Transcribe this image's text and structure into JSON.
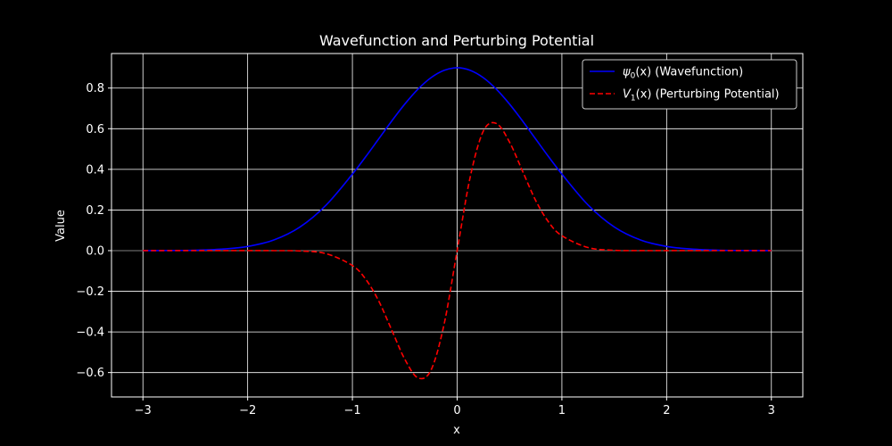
{
  "chart_data": {
    "type": "line",
    "title": "Wavefunction and Perturbing Potential",
    "xlabel": "x",
    "ylabel": "Value",
    "xlim": [
      -3.3,
      3.3
    ],
    "ylim": [
      -0.72,
      0.97
    ],
    "grid": true,
    "legend_placement": "top-right",
    "background": "#000000",
    "foreground": "#ffffff",
    "x_ticks": [
      -3,
      -2,
      -1,
      0,
      1,
      2,
      3
    ],
    "x_tick_labels": [
      "−3",
      "−2",
      "−1",
      "0",
      "1",
      "2",
      "3"
    ],
    "y_ticks": [
      -0.6,
      -0.4,
      -0.2,
      0.0,
      0.2,
      0.4,
      0.6,
      0.8
    ],
    "y_tick_labels": [
      "−0.6",
      "−0.4",
      "−0.2",
      "0.0",
      "0.2",
      "0.4",
      "0.6",
      "0.8"
    ],
    "reference_line": {
      "y": 0,
      "color": "#808080"
    },
    "x": [
      -3.0,
      -2.75,
      -2.5,
      -2.25,
      -2.0,
      -1.75,
      -1.5,
      -1.25,
      -1.0,
      -0.875,
      -0.75,
      -0.625,
      -0.5,
      -0.375,
      -0.25,
      -0.125,
      0.0,
      0.125,
      0.25,
      0.375,
      0.5,
      0.625,
      0.75,
      0.875,
      1.0,
      1.25,
      1.5,
      1.75,
      2.0,
      2.25,
      2.5,
      2.75,
      3.0
    ],
    "series": [
      {
        "name": "ψ₀(x) (Wavefunction)",
        "legend_math": "ψ",
        "legend_sub": "0",
        "legend_rest": "(x) (Wavefunction)",
        "color": "#0000ff",
        "style": "solid",
        "values": [
          0.0001,
          0.0005,
          0.0017,
          0.0057,
          0.0164,
          0.0418,
          0.0926,
          0.1786,
          0.2994,
          0.3663,
          0.4366,
          0.507,
          0.5734,
          0.6314,
          0.6767,
          0.7055,
          0.7155,
          0.7055,
          0.6767,
          0.6314,
          0.5734,
          0.507,
          0.4366,
          0.3663,
          0.2994,
          0.1786,
          0.0926,
          0.0418,
          0.0164,
          0.0057,
          0.0017,
          0.0005,
          0.0001
        ],
        "y_scale": 1.2577
      },
      {
        "name": "V₁(x) (Perturbing Potential)",
        "legend_math": "V",
        "legend_sub": "1",
        "legend_rest": "(x) (Perturbing Potential)",
        "color": "#ff0000",
        "style": "dashed",
        "values": [
          -0.0,
          -0.0,
          -0.0,
          -0.0,
          -0.0,
          -0.0001,
          -0.0017,
          -0.0151,
          -0.0734,
          -0.1393,
          -0.2464,
          -0.3905,
          -0.5341,
          -0.6257,
          -0.5884,
          -0.3632,
          0.0,
          0.3632,
          0.5884,
          0.6257,
          0.5341,
          0.3905,
          0.2464,
          0.1393,
          0.0734,
          0.0151,
          0.0017,
          0.0001,
          0.0,
          0.0,
          0.0,
          0.0,
          0.0
        ],
        "y_scale": 1.0
      }
    ]
  }
}
